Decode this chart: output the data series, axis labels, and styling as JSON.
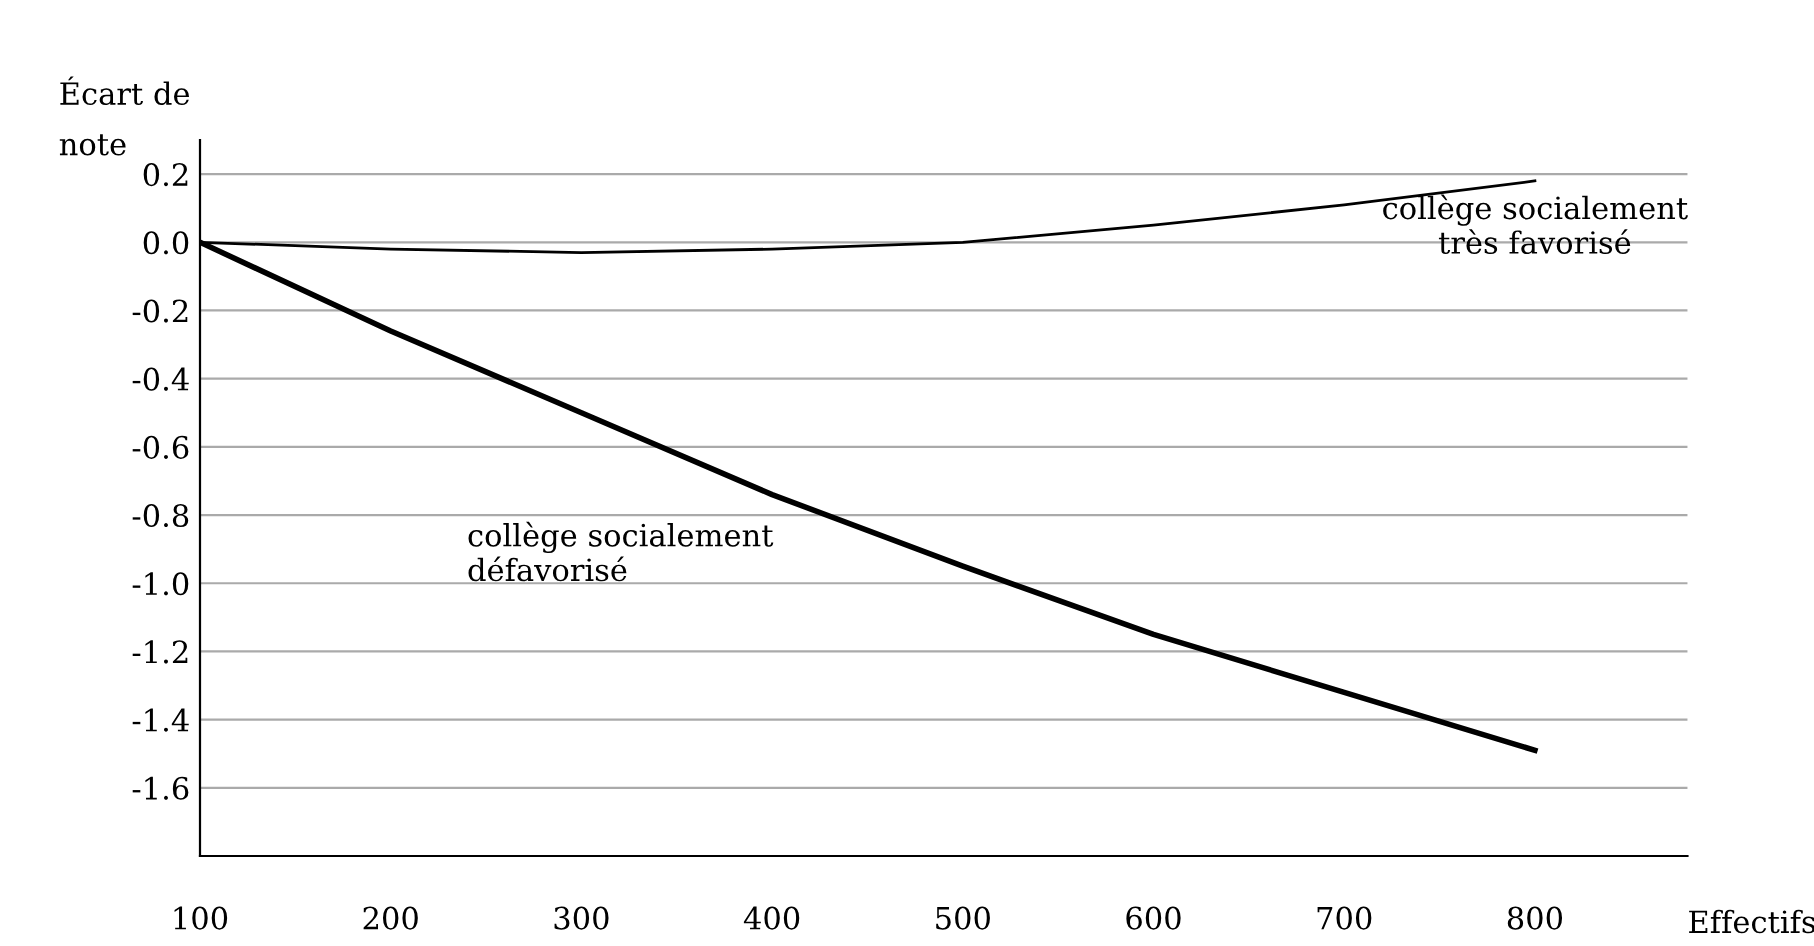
{
  "chart_data": {
    "type": "line",
    "ylabel": "Écart de\nnote",
    "xlabel": "Effectifs",
    "x": [
      100,
      200,
      300,
      400,
      500,
      600,
      700,
      800
    ],
    "series": [
      {
        "name": "collège socialement\ntrès favorisé",
        "color": "#000000",
        "values": [
          0,
          -0.02,
          -0.03,
          -0.02,
          0.0,
          0.05,
          0.11,
          0.18
        ]
      },
      {
        "name": "collège socialement\ndéfavorisé",
        "color": "#000000",
        "values": [
          0,
          -0.26,
          -0.5,
          -0.74,
          -0.95,
          -1.15,
          -1.32,
          -1.49
        ]
      }
    ],
    "xlim": [
      100,
      880
    ],
    "ylim": [
      -1.8,
      0.3
    ],
    "xticks": [
      100,
      200,
      300,
      400,
      500,
      600,
      700,
      800
    ],
    "yticks": [
      {
        "value": 0.2,
        "label": "0.2"
      },
      {
        "value": 0.0,
        "label": "0.0"
      },
      {
        "value": -0.2,
        "label": "-0.2"
      },
      {
        "value": -0.4,
        "label": "-0.4"
      },
      {
        "value": -0.6,
        "label": "-0.6"
      },
      {
        "value": -0.8,
        "label": "-0.8"
      },
      {
        "value": -1.0,
        "label": "-1.0"
      },
      {
        "value": -1.2,
        "label": "-1.2"
      },
      {
        "value": -1.4,
        "label": "-1.4"
      },
      {
        "value": -1.6,
        "label": "-1.6"
      }
    ],
    "grid": "y",
    "legend": false,
    "marker": "none",
    "line_style": "solid"
  }
}
